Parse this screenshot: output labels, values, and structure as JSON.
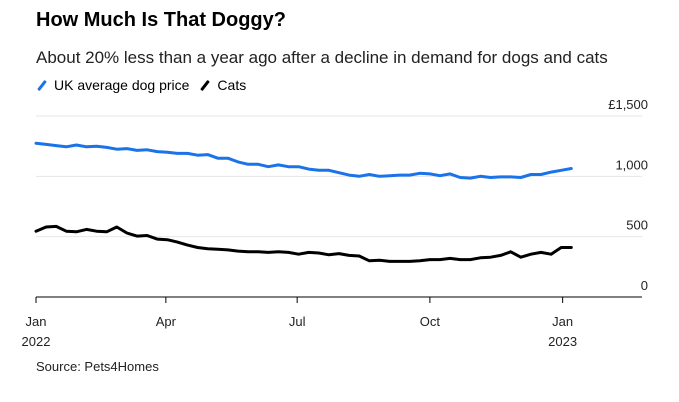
{
  "header": {
    "title": "How Much Is That Doggy?",
    "subtitle": "About 20% less than a year ago after a decline in demand for dogs and cats"
  },
  "legend": [
    {
      "label": "UK average dog price",
      "color": "#1a73e8"
    },
    {
      "label": "Cats",
      "color": "#000000"
    }
  ],
  "footer": {
    "source": "Source: Pets4Homes"
  },
  "chart_data": {
    "type": "line",
    "title": "How Much Is That Doggy?",
    "subtitle": "About 20% less than a year ago after a decline in demand for dogs and cats",
    "ylim": [
      0,
      1500
    ],
    "y_ticks": [
      {
        "value": 1500,
        "label": "£1,500"
      },
      {
        "value": 1000,
        "label": "1,000"
      },
      {
        "value": 500,
        "label": "500"
      },
      {
        "value": 0,
        "label": "0"
      }
    ],
    "x_range": [
      "2022-01-01",
      "2023-02-25"
    ],
    "x_ticks": [
      {
        "date": "2022-01-01",
        "label": "Jan",
        "sublabel": "2022"
      },
      {
        "date": "2022-04-01",
        "label": "Apr",
        "sublabel": ""
      },
      {
        "date": "2022-07-01",
        "label": "Jul",
        "sublabel": ""
      },
      {
        "date": "2022-10-01",
        "label": "Oct",
        "sublabel": ""
      },
      {
        "date": "2023-01-01",
        "label": "Jan",
        "sublabel": "2023"
      }
    ],
    "grid": true,
    "legend_position": "top-left",
    "series": [
      {
        "name": "UK average dog price",
        "color": "#1a73e8",
        "points": [
          [
            "2022-01-01",
            1275
          ],
          [
            "2022-01-08",
            1265
          ],
          [
            "2022-01-15",
            1255
          ],
          [
            "2022-01-22",
            1245
          ],
          [
            "2022-01-29",
            1260
          ],
          [
            "2022-02-05",
            1245
          ],
          [
            "2022-02-12",
            1250
          ],
          [
            "2022-02-19",
            1240
          ],
          [
            "2022-02-26",
            1225
          ],
          [
            "2022-03-05",
            1230
          ],
          [
            "2022-03-12",
            1215
          ],
          [
            "2022-03-19",
            1220
          ],
          [
            "2022-03-26",
            1205
          ],
          [
            "2022-04-02",
            1200
          ],
          [
            "2022-04-09",
            1190
          ],
          [
            "2022-04-16",
            1190
          ],
          [
            "2022-04-23",
            1175
          ],
          [
            "2022-04-30",
            1180
          ],
          [
            "2022-05-07",
            1150
          ],
          [
            "2022-05-14",
            1150
          ],
          [
            "2022-05-21",
            1120
          ],
          [
            "2022-05-28",
            1100
          ],
          [
            "2022-06-04",
            1100
          ],
          [
            "2022-06-11",
            1080
          ],
          [
            "2022-06-18",
            1095
          ],
          [
            "2022-06-25",
            1080
          ],
          [
            "2022-07-02",
            1080
          ],
          [
            "2022-07-09",
            1060
          ],
          [
            "2022-07-16",
            1050
          ],
          [
            "2022-07-23",
            1050
          ],
          [
            "2022-07-30",
            1030
          ],
          [
            "2022-08-06",
            1010
          ],
          [
            "2022-08-13",
            1000
          ],
          [
            "2022-08-20",
            1015
          ],
          [
            "2022-08-27",
            1000
          ],
          [
            "2022-09-03",
            1005
          ],
          [
            "2022-09-10",
            1010
          ],
          [
            "2022-09-17",
            1010
          ],
          [
            "2022-09-24",
            1025
          ],
          [
            "2022-10-01",
            1020
          ],
          [
            "2022-10-08",
            1005
          ],
          [
            "2022-10-15",
            1020
          ],
          [
            "2022-10-22",
            990
          ],
          [
            "2022-10-29",
            985
          ],
          [
            "2022-11-05",
            1000
          ],
          [
            "2022-11-12",
            990
          ],
          [
            "2022-11-19",
            995
          ],
          [
            "2022-11-26",
            995
          ],
          [
            "2022-12-03",
            990
          ],
          [
            "2022-12-10",
            1015
          ],
          [
            "2022-12-17",
            1015
          ],
          [
            "2022-12-24",
            1035
          ],
          [
            "2022-12-31",
            1050
          ],
          [
            "2023-01-07",
            1065
          ]
        ]
      },
      {
        "name": "Cats",
        "color": "#000000",
        "points": [
          [
            "2022-01-01",
            545
          ],
          [
            "2022-01-08",
            580
          ],
          [
            "2022-01-15",
            585
          ],
          [
            "2022-01-22",
            545
          ],
          [
            "2022-01-29",
            540
          ],
          [
            "2022-02-05",
            560
          ],
          [
            "2022-02-12",
            545
          ],
          [
            "2022-02-19",
            540
          ],
          [
            "2022-02-26",
            580
          ],
          [
            "2022-03-05",
            530
          ],
          [
            "2022-03-12",
            505
          ],
          [
            "2022-03-19",
            510
          ],
          [
            "2022-03-26",
            480
          ],
          [
            "2022-04-02",
            475
          ],
          [
            "2022-04-09",
            455
          ],
          [
            "2022-04-16",
            430
          ],
          [
            "2022-04-23",
            410
          ],
          [
            "2022-04-30",
            400
          ],
          [
            "2022-05-07",
            395
          ],
          [
            "2022-05-14",
            390
          ],
          [
            "2022-05-21",
            380
          ],
          [
            "2022-05-28",
            375
          ],
          [
            "2022-06-04",
            375
          ],
          [
            "2022-06-11",
            370
          ],
          [
            "2022-06-18",
            375
          ],
          [
            "2022-06-25",
            370
          ],
          [
            "2022-07-02",
            355
          ],
          [
            "2022-07-09",
            370
          ],
          [
            "2022-07-16",
            365
          ],
          [
            "2022-07-23",
            350
          ],
          [
            "2022-07-30",
            360
          ],
          [
            "2022-08-06",
            345
          ],
          [
            "2022-08-13",
            340
          ],
          [
            "2022-08-20",
            300
          ],
          [
            "2022-08-27",
            305
          ],
          [
            "2022-09-03",
            295
          ],
          [
            "2022-09-10",
            295
          ],
          [
            "2022-09-17",
            295
          ],
          [
            "2022-09-24",
            300
          ],
          [
            "2022-10-01",
            310
          ],
          [
            "2022-10-08",
            310
          ],
          [
            "2022-10-15",
            320
          ],
          [
            "2022-10-22",
            310
          ],
          [
            "2022-10-29",
            310
          ],
          [
            "2022-11-05",
            325
          ],
          [
            "2022-11-12",
            330
          ],
          [
            "2022-11-19",
            345
          ],
          [
            "2022-11-26",
            375
          ],
          [
            "2022-12-03",
            330
          ],
          [
            "2022-12-10",
            355
          ],
          [
            "2022-12-17",
            370
          ],
          [
            "2022-12-24",
            355
          ],
          [
            "2022-12-31",
            410
          ],
          [
            "2023-01-07",
            410
          ]
        ]
      }
    ]
  }
}
